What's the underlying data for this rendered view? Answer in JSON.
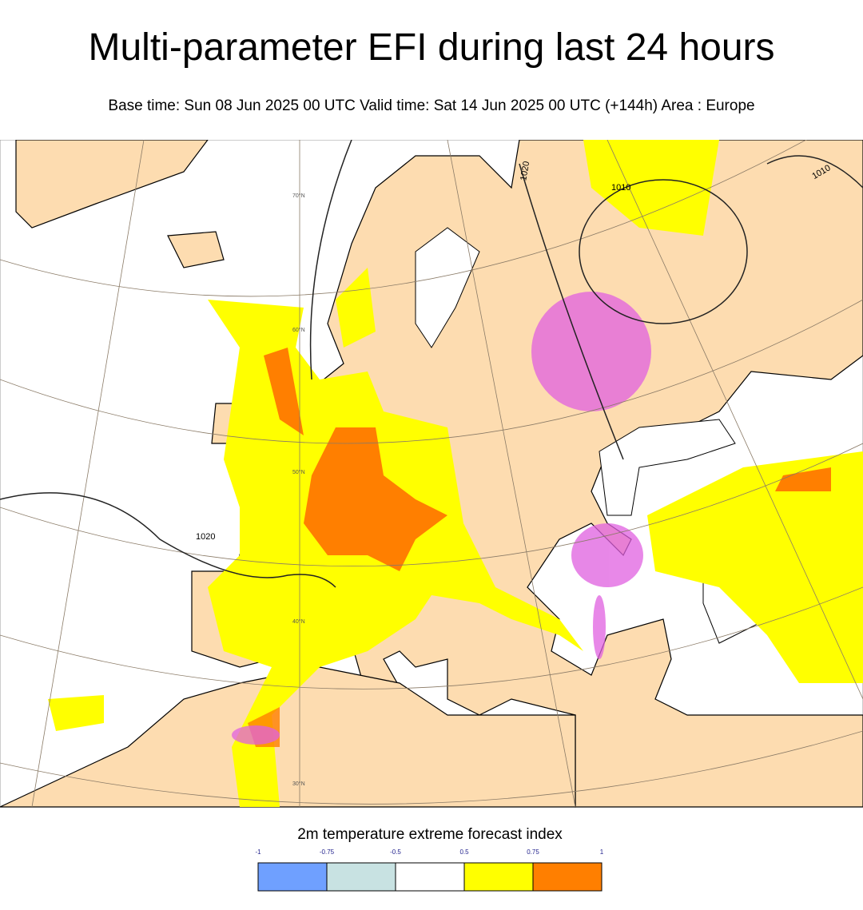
{
  "header": {
    "title": "Multi-parameter EFI during last 24 hours",
    "subtitle": "Base time: Sun 08 Jun 2025 00 UTC Valid time: Sat 14 Jun 2025 00 UTC (+144h) Area : Europe"
  },
  "map": {
    "latitude_labels": [
      "70°N",
      "60°N",
      "50°N",
      "40°N",
      "30°N"
    ],
    "isobar_labels": [
      "1020",
      "1010",
      "1010",
      "1020"
    ]
  },
  "legend": {
    "title": "2m temperature extreme forecast index",
    "ticks": [
      -1,
      -0.75,
      -0.5,
      0.5,
      0.75,
      1
    ],
    "colors": [
      "#6fa0ff",
      "#c8e2e2",
      "#ffffff",
      "#ffff00",
      "#ff7f00"
    ]
  }
}
